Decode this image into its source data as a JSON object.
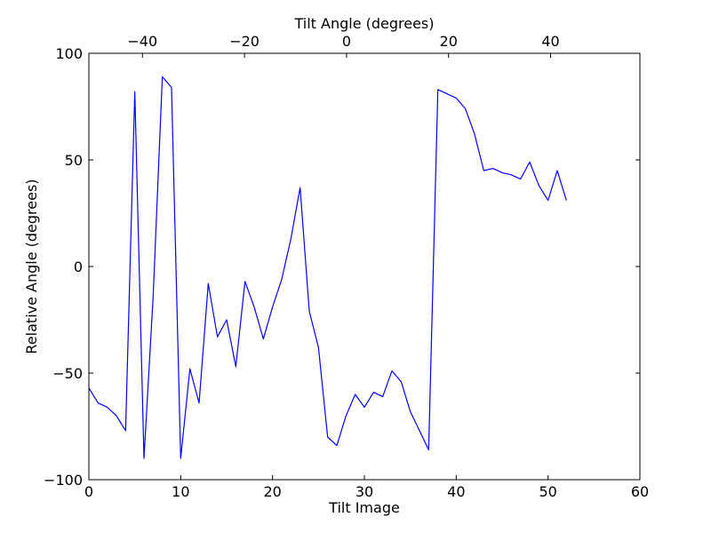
{
  "chart_data": {
    "type": "line",
    "xlabel": "Tilt Image",
    "ylabel": "Relative Angle (degrees)",
    "top_xlabel": "Tilt Angle (degrees)",
    "xlim": [
      0,
      60
    ],
    "ylim": [
      -100,
      100
    ],
    "top_xlim": [
      -50.5,
      57.5
    ],
    "xticks": [
      0,
      10,
      20,
      30,
      40,
      50,
      60
    ],
    "xtick_labels": [
      "0",
      "10",
      "20",
      "30",
      "40",
      "50",
      "60"
    ],
    "yticks": [
      -100,
      -50,
      0,
      50,
      100
    ],
    "ytick_labels": [
      "−100",
      "−50",
      "0",
      "50",
      "100"
    ],
    "top_xticks": [
      -40,
      -20,
      0,
      20,
      40
    ],
    "top_xtick_labels": [
      "−40",
      "−20",
      "0",
      "20",
      "40"
    ],
    "grid": false,
    "series": [
      {
        "color": "#0000ff",
        "x": [
          0,
          1,
          2,
          3,
          4,
          5,
          6,
          7,
          8,
          9,
          10,
          11,
          12,
          13,
          14,
          15,
          16,
          17,
          18,
          19,
          20,
          21,
          22,
          23,
          24,
          25,
          26,
          27,
          28,
          29,
          30,
          31,
          32,
          33,
          34,
          35,
          36,
          37,
          38,
          39,
          40,
          41,
          42,
          43,
          44,
          45,
          46,
          47,
          48,
          49,
          50,
          51,
          52
        ],
        "y": [
          -57,
          -64,
          -66,
          -70,
          -77,
          82,
          -90,
          -14,
          89,
          84,
          -90,
          -48,
          -64,
          -8,
          -33,
          -25,
          -47,
          -7,
          -19,
          -34,
          -19,
          -6,
          13,
          37,
          -21,
          -38,
          -80,
          -84,
          -70,
          -60,
          -66,
          -59,
          -61,
          -49,
          -54,
          -68,
          -77,
          -86,
          83,
          81,
          79,
          74,
          62,
          45,
          46,
          44,
          43,
          41,
          49,
          38,
          31,
          45,
          31
        ]
      }
    ]
  }
}
